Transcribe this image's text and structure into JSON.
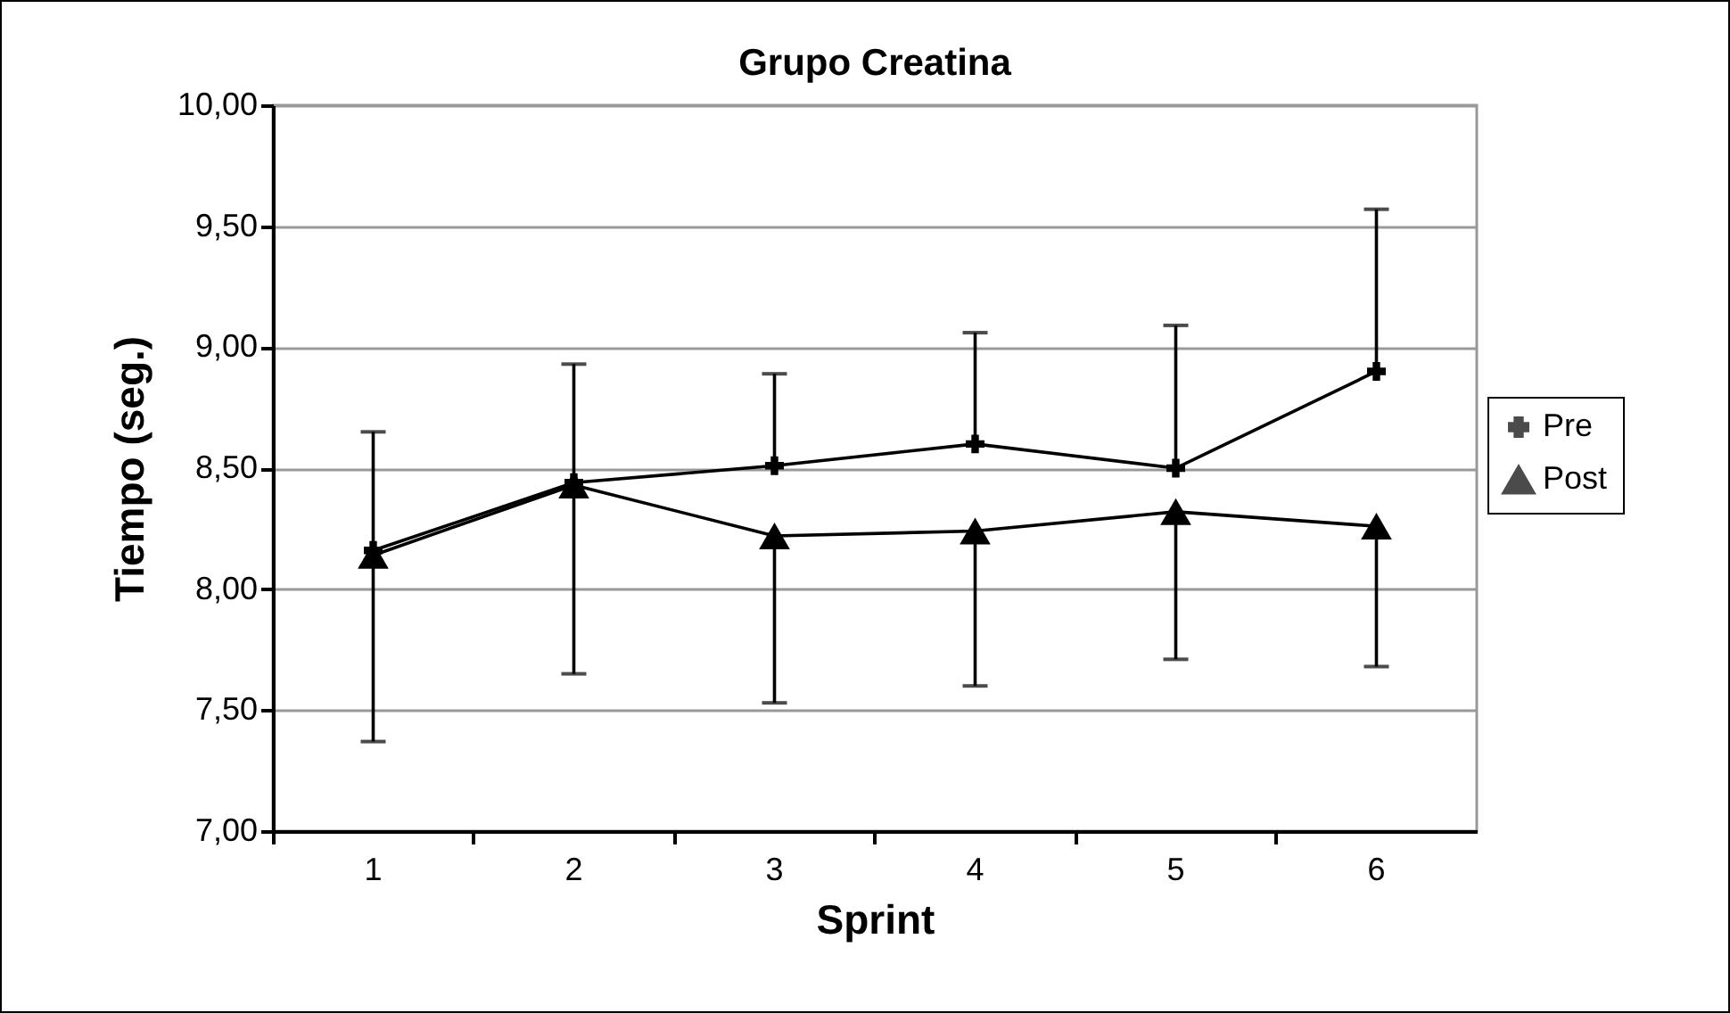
{
  "chart_data": {
    "type": "line",
    "title": "Grupo Creatina",
    "xlabel": "Sprint",
    "ylabel": "Tiempo (seg.)",
    "categories": [
      "1",
      "2",
      "3",
      "4",
      "5",
      "6"
    ],
    "series": [
      {
        "name": "Pre",
        "color": "#000000",
        "marker": "cross",
        "values": [
          8.16,
          8.44,
          8.51,
          8.6,
          8.5,
          8.9
        ],
        "errors": [
          [
            8.16,
            8.65
          ],
          [
            8.44,
            8.93
          ],
          [
            8.51,
            8.89
          ],
          [
            8.6,
            9.06
          ],
          [
            8.5,
            9.09
          ],
          [
            8.9,
            9.57
          ]
        ]
      },
      {
        "name": "Post",
        "color": "#000000",
        "marker": "triangle",
        "values": [
          8.14,
          8.43,
          8.22,
          8.24,
          8.32,
          8.26
        ],
        "errors": [
          [
            7.37,
            8.14
          ],
          [
            7.65,
            8.43
          ],
          [
            7.53,
            8.22
          ],
          [
            7.6,
            8.24
          ],
          [
            7.71,
            8.32
          ],
          [
            7.68,
            8.26
          ]
        ]
      }
    ],
    "ylim": [
      7,
      10
    ],
    "yticks": [
      {
        "value": 7,
        "label": "7,00"
      },
      {
        "value": 7.5,
        "label": "7,50"
      },
      {
        "value": 8,
        "label": "8,00"
      },
      {
        "value": 8.5,
        "label": "8,50"
      },
      {
        "value": 9,
        "label": "9,00"
      },
      {
        "value": 9.5,
        "label": "9,50"
      },
      {
        "value": 10,
        "label": "10,00"
      }
    ],
    "grid": "y",
    "legend": "right",
    "line_style": "solid"
  }
}
